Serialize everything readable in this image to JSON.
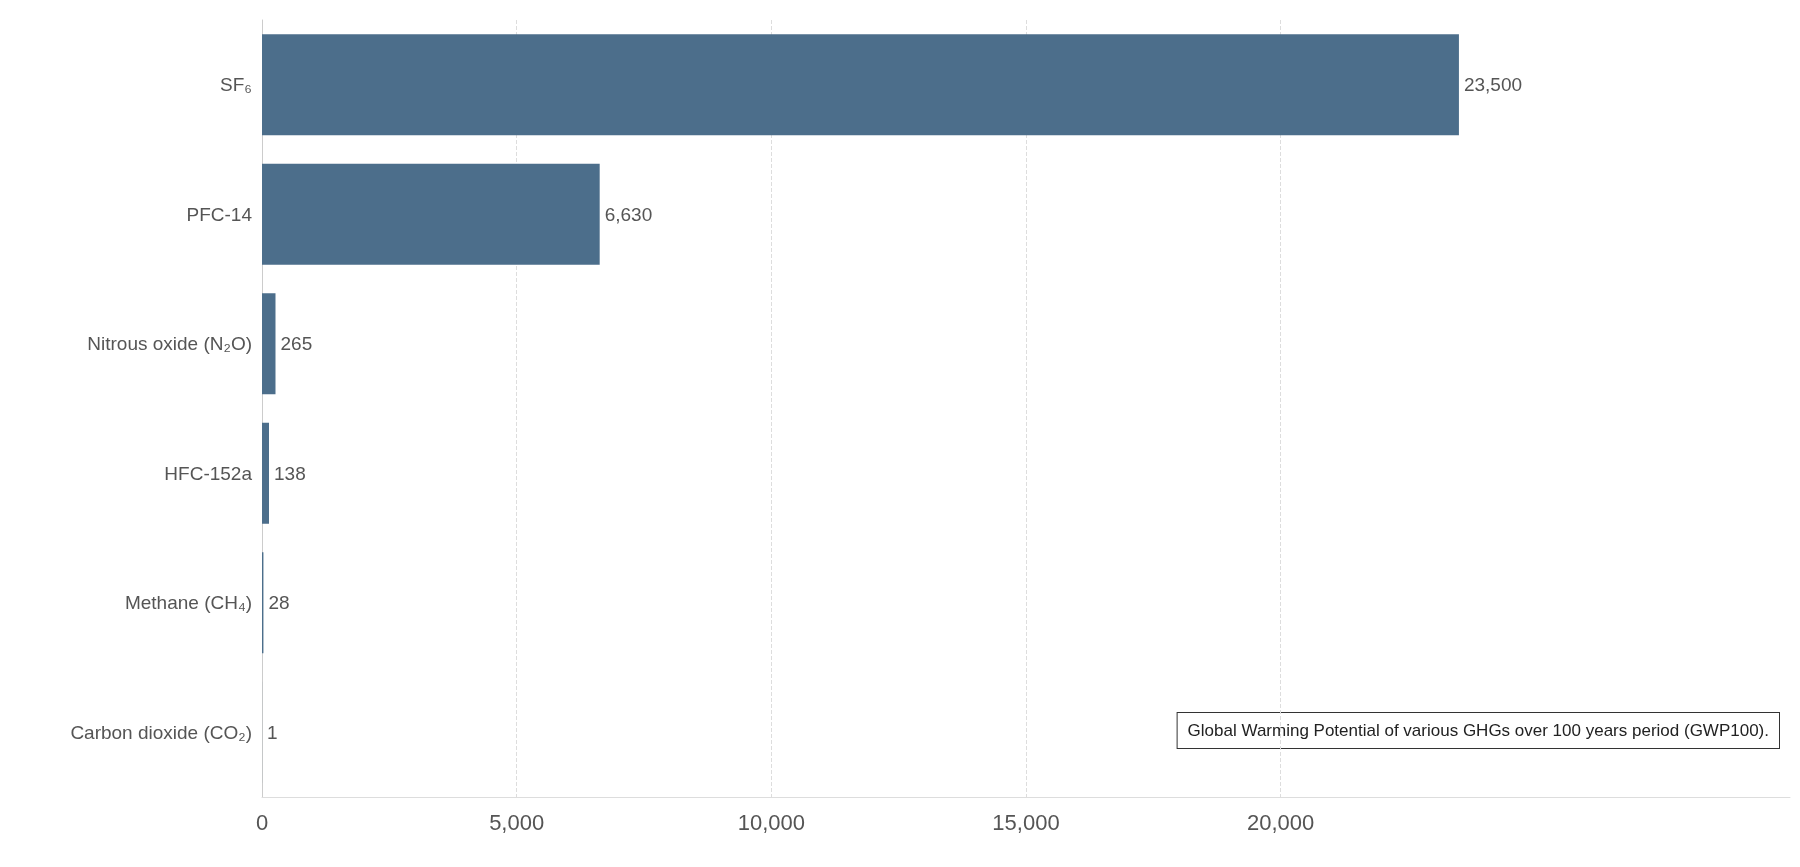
{
  "chart_data": {
    "type": "bar",
    "orientation": "horizontal",
    "categories": [
      "SF₆",
      "PFC-14",
      "Nitrous oxide (N₂O)",
      "HFC-152a",
      "Methane (CH₄)",
      "Carbon dioxide (CO₂)"
    ],
    "values": [
      23500,
      6630,
      265,
      138,
      28,
      1
    ],
    "value_labels": [
      "23,500",
      "6,630",
      "265",
      "138",
      "28",
      "1"
    ],
    "color": "#4c6e8b",
    "xlim": [
      0,
      30000
    ],
    "xticks": [
      0,
      {
        "value": 5000,
        "label": "5,000"
      },
      {
        "value": 10000,
        "label": "10,000"
      },
      {
        "value": 15000,
        "label": "15,000"
      },
      {
        "value": 20000,
        "label": "20,000"
      }
    ],
    "grid": "x",
    "annotations": [
      "Global Warming Potential of various GHGs over 100 years period (GWP100)."
    ]
  }
}
